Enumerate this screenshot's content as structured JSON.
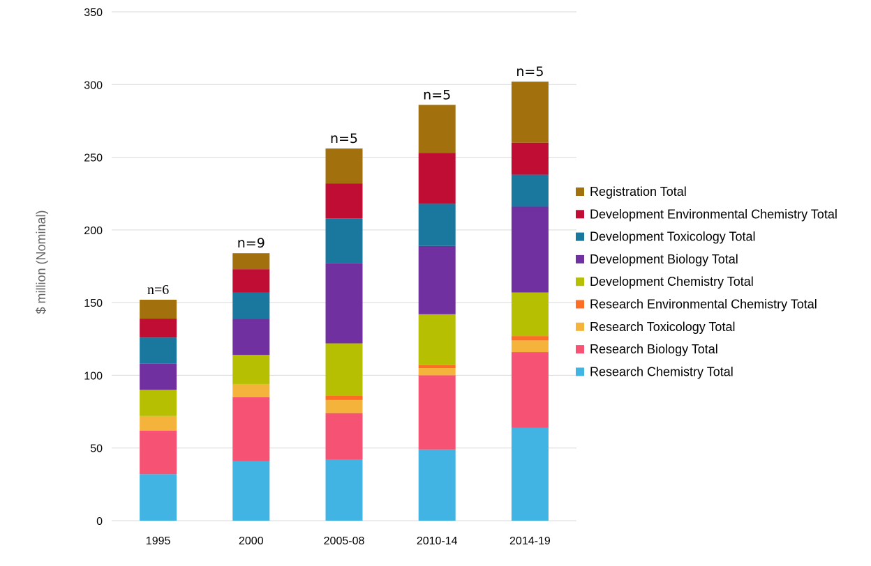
{
  "chart_data": {
    "type": "bar",
    "stacked": true,
    "categories": [
      "1995",
      "2000",
      "2005-08",
      "2010-14",
      "2014-19"
    ],
    "annotations": [
      "n=6",
      "n=9",
      "n=5",
      "n=5",
      "n=5"
    ],
    "ylabel": "$ million (Nominal)",
    "xlabel": "",
    "ylim": [
      0,
      350
    ],
    "yticks": [
      0,
      50,
      100,
      150,
      200,
      250,
      300,
      350
    ],
    "grid": true,
    "legend_position": "right",
    "series": [
      {
        "name": "Research Chemistry Total",
        "color": "#41b4e4",
        "values": [
          32,
          41,
          42,
          49,
          64
        ]
      },
      {
        "name": "Research Biology Total",
        "color": "#f65374",
        "values": [
          30,
          44,
          32,
          51,
          52
        ]
      },
      {
        "name": "Research Toxicology Total",
        "color": "#f4b43c",
        "values": [
          10,
          9,
          9,
          5,
          8
        ]
      },
      {
        "name": "Research Environmental Chemistry Total",
        "color": "#fd6d25",
        "values": [
          0,
          0,
          3,
          2,
          3
        ]
      },
      {
        "name": "Development Chemistry Total",
        "color": "#b6bf02",
        "values": [
          18,
          20,
          36,
          35,
          30
        ]
      },
      {
        "name": "Development Biology Total",
        "color": "#7030a0",
        "values": [
          18,
          25,
          55,
          47,
          59
        ]
      },
      {
        "name": "Development Toxicology Total",
        "color": "#1a779e",
        "values": [
          18,
          18,
          31,
          29,
          22
        ]
      },
      {
        "name": "Development Environmental Chemistry Total",
        "color": "#c00d34",
        "values": [
          13,
          16,
          24,
          35,
          22
        ]
      },
      {
        "name": "Registration Total",
        "color": "#a2700c",
        "values": [
          13,
          11,
          24,
          33,
          42
        ]
      }
    ]
  }
}
